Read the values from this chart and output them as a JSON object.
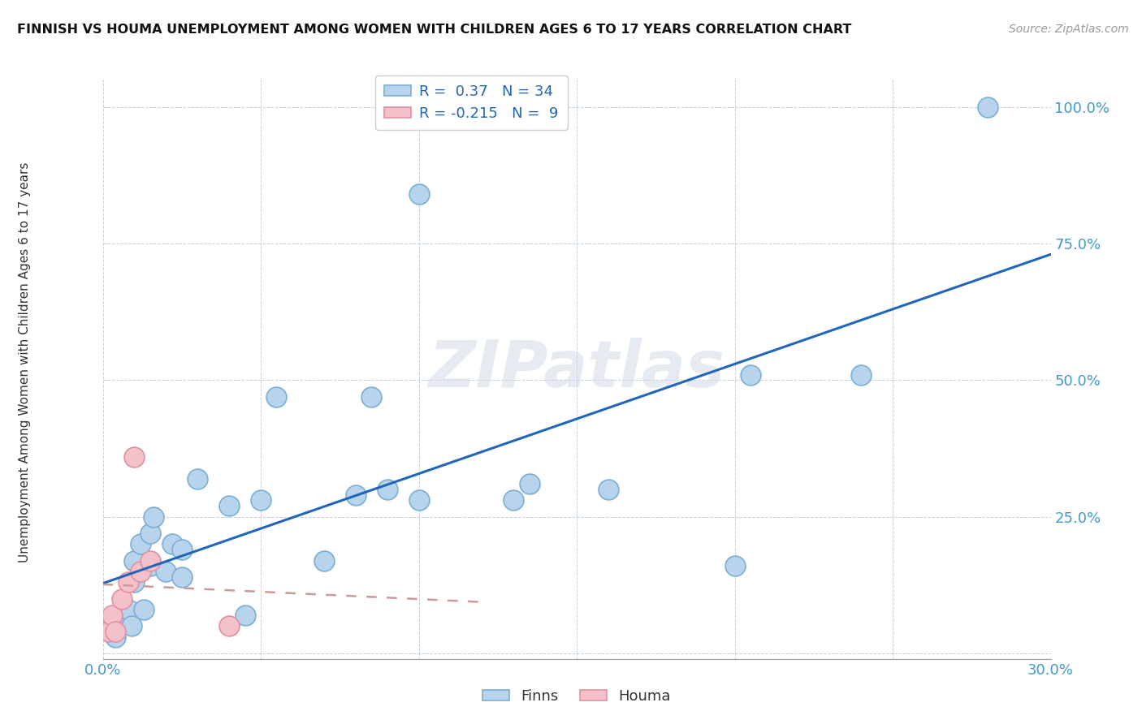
{
  "title": "FINNISH VS HOUMA UNEMPLOYMENT AMONG WOMEN WITH CHILDREN AGES 6 TO 17 YEARS CORRELATION CHART",
  "source": "Source: ZipAtlas.com",
  "ylabel": "Unemployment Among Women with Children Ages 6 to 17 years",
  "xlim": [
    0.0,
    0.3
  ],
  "ylim": [
    -0.01,
    1.05
  ],
  "xticks": [
    0.0,
    0.05,
    0.1,
    0.15,
    0.2,
    0.25,
    0.3
  ],
  "xticklabels": [
    "0.0%",
    "",
    "",
    "",
    "",
    "",
    "30.0%"
  ],
  "yticks": [
    0.0,
    0.25,
    0.5,
    0.75,
    1.0
  ],
  "yticklabels": [
    "",
    "25.0%",
    "50.0%",
    "75.0%",
    "100.0%"
  ],
  "finns_R": 0.37,
  "finns_N": 34,
  "houma_R": -0.215,
  "houma_N": 9,
  "finns_color": "#b8d4ec",
  "finns_edge_color": "#7aafd4",
  "houma_color": "#f4c0ca",
  "houma_edge_color": "#e090a0",
  "trend_finns_color": "#2266bb",
  "trend_houma_color": "#cc9999",
  "watermark_text": "ZIPatlas",
  "finns_x": [
    0.003,
    0.004,
    0.007,
    0.008,
    0.009,
    0.01,
    0.01,
    0.012,
    0.013,
    0.015,
    0.015,
    0.016,
    0.02,
    0.022,
    0.025,
    0.025,
    0.03,
    0.04,
    0.045,
    0.05,
    0.055,
    0.07,
    0.08,
    0.085,
    0.09,
    0.1,
    0.1,
    0.13,
    0.135,
    0.16,
    0.2,
    0.205,
    0.24,
    0.28
  ],
  "finns_y": [
    0.05,
    0.03,
    0.06,
    0.08,
    0.05,
    0.13,
    0.17,
    0.2,
    0.08,
    0.16,
    0.22,
    0.25,
    0.15,
    0.2,
    0.14,
    0.19,
    0.32,
    0.27,
    0.07,
    0.28,
    0.47,
    0.17,
    0.29,
    0.47,
    0.3,
    0.28,
    0.84,
    0.28,
    0.31,
    0.3,
    0.16,
    0.51,
    0.51,
    1.0
  ],
  "houma_x": [
    0.002,
    0.003,
    0.004,
    0.006,
    0.008,
    0.01,
    0.012,
    0.015,
    0.04
  ],
  "houma_y": [
    0.04,
    0.07,
    0.04,
    0.1,
    0.13,
    0.36,
    0.15,
    0.17,
    0.05
  ]
}
